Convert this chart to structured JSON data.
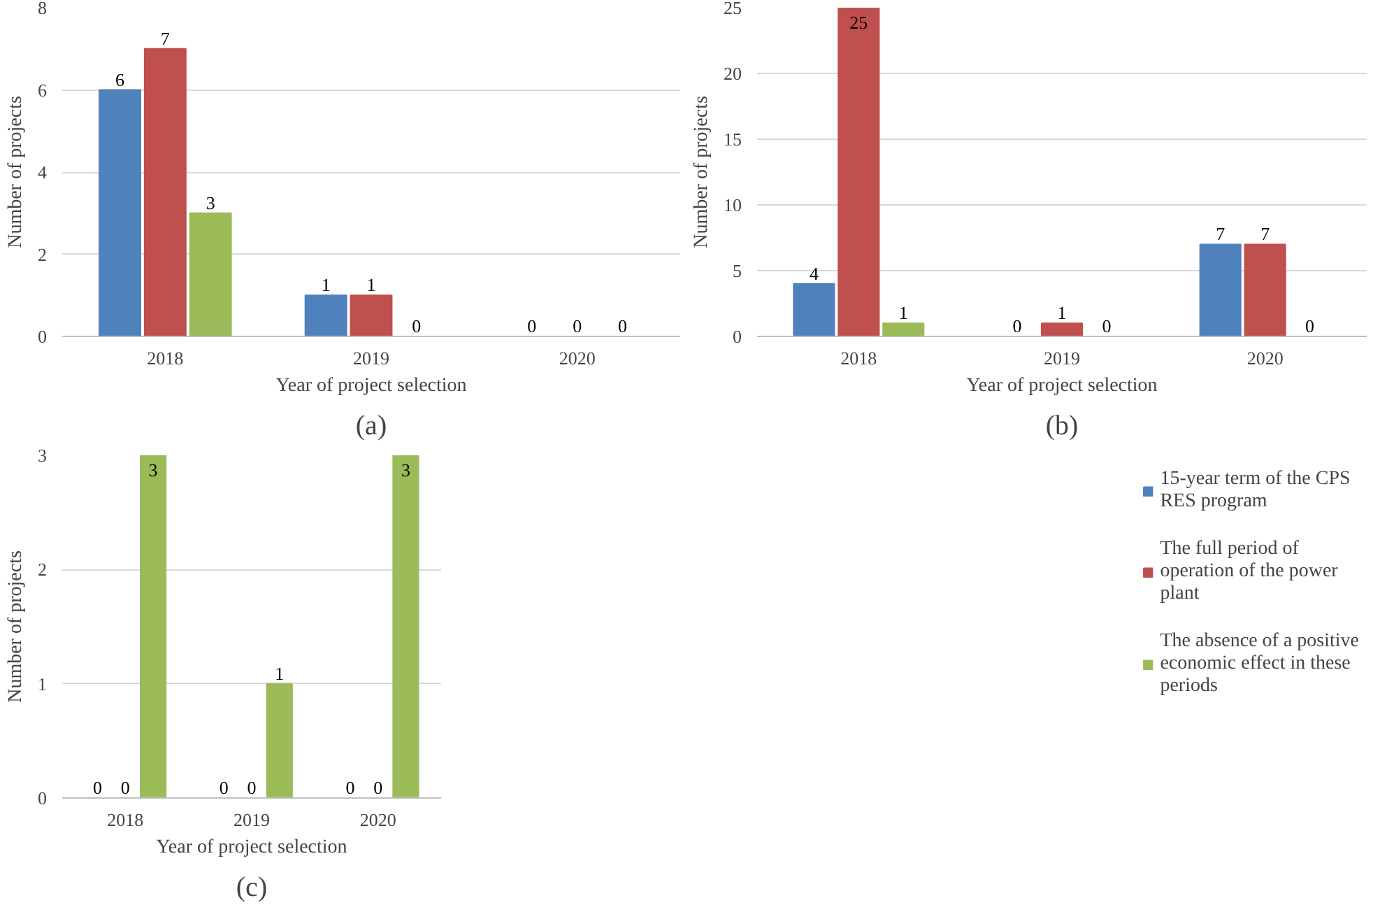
{
  "chart_data": [
    {
      "type": "bar",
      "categories": [
        "2018",
        "2019",
        "2020"
      ],
      "xlabel": "Year of project selection",
      "ylabel": "Number of projects",
      "ylim": [
        0,
        8
      ],
      "yticks": [
        0,
        2,
        4,
        6,
        8
      ],
      "grid": "y",
      "data_labels": true,
      "annotations": [
        "(a)"
      ],
      "series": [
        {
          "color": "#4f81bd",
          "values": [
            6,
            1,
            0
          ]
        },
        {
          "color": "#c0504d",
          "values": [
            7,
            1,
            0
          ]
        },
        {
          "color": "#9bbb59",
          "values": [
            3,
            0,
            0
          ]
        }
      ]
    },
    {
      "type": "bar",
      "categories": [
        "2018",
        "2019",
        "2020"
      ],
      "xlabel": "Year of project selection",
      "ylabel": "Number of projects",
      "ylim": [
        0,
        25
      ],
      "yticks": [
        0,
        5,
        10,
        15,
        20,
        25
      ],
      "grid": "y",
      "data_labels": true,
      "annotations": [
        "(b)"
      ],
      "series": [
        {
          "color": "#4f81bd",
          "values": [
            4,
            0,
            7
          ]
        },
        {
          "color": "#c0504d",
          "values": [
            25,
            1,
            7
          ]
        },
        {
          "color": "#9bbb59",
          "values": [
            1,
            0,
            0
          ]
        }
      ]
    },
    {
      "type": "bar",
      "categories": [
        "2018",
        "2019",
        "2020"
      ],
      "xlabel": "Year of project selection",
      "ylabel": "Number of projects",
      "ylim": [
        0,
        3
      ],
      "yticks": [
        0,
        1,
        2,
        3
      ],
      "grid": "y",
      "data_labels": true,
      "legend": "right",
      "annotations": [
        "(c)"
      ],
      "series": [
        {
          "name": "15-year term of the CPS RES program",
          "color": "#4f81bd",
          "values": [
            0,
            0,
            0
          ]
        },
        {
          "name": "The full period of operation of the power plant",
          "color": "#c0504d",
          "values": [
            0,
            0,
            0
          ]
        },
        {
          "name": "The absence of a positive economic effect in these periods",
          "color": "#9bbb59",
          "values": [
            3,
            1,
            3
          ]
        }
      ]
    }
  ]
}
